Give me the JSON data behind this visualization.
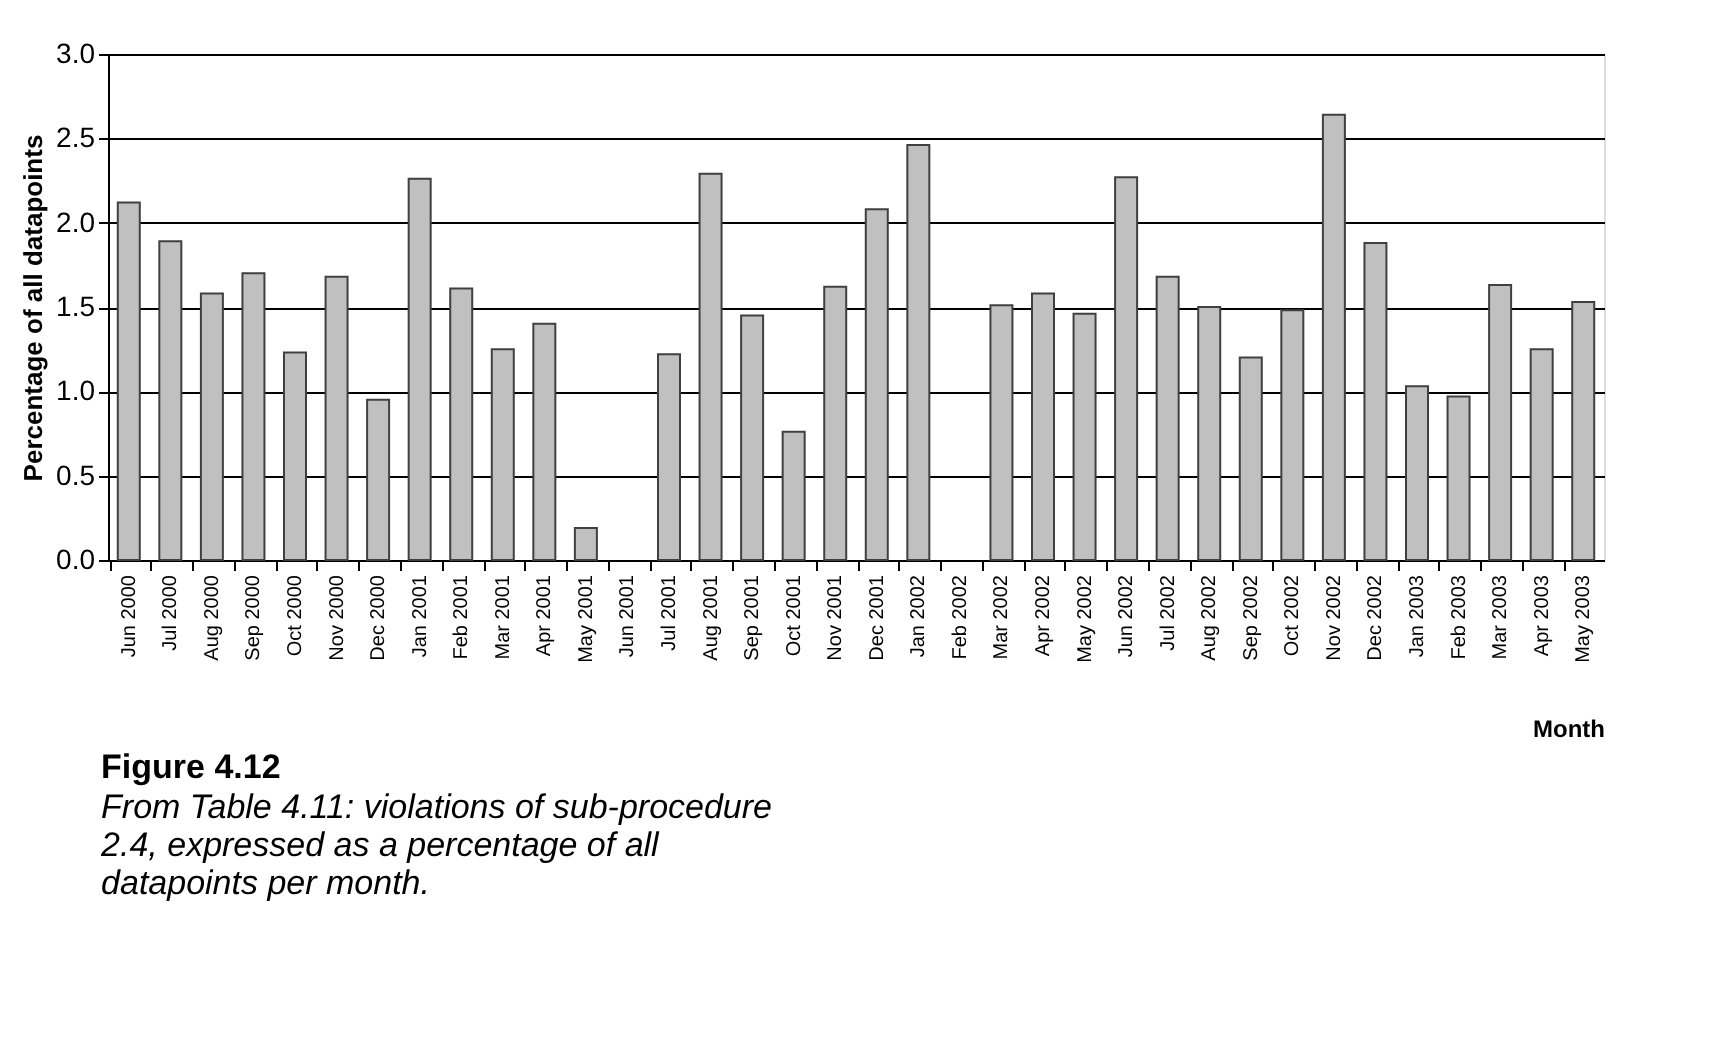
{
  "chart_data": {
    "type": "bar",
    "title": "Figure 4.12",
    "subtitle": "From Table 4.11: violations of sub-procedure 2.4, expressed as a percentage of all datapoints per month.",
    "xlabel": "Month",
    "ylabel": "Percentage of all datapoints",
    "categories": [
      "Jun 2000",
      "Jul 2000",
      "Aug 2000",
      "Sep 2000",
      "Oct 2000",
      "Nov 2000",
      "Dec 2000",
      "Jan 2001",
      "Feb 2001",
      "Mar 2001",
      "Apr 2001",
      "May 2001",
      "Jun 2001",
      "Jul 2001",
      "Aug 2001",
      "Sep 2001",
      "Oct 2001",
      "Nov 2001",
      "Dec 2001",
      "Jan 2002",
      "Feb 2002",
      "Mar 2002",
      "Apr 2002",
      "May 2002",
      "Jun 2002",
      "Jul 2002",
      "Aug 2002",
      "Sep 2002",
      "Oct 2002",
      "Nov 2002",
      "Dec 2002",
      "Jan 2003",
      "Feb 2003",
      "Mar 2003",
      "Apr 2003",
      "May 2003"
    ],
    "values": [
      2.12,
      1.89,
      1.58,
      1.7,
      1.23,
      1.68,
      0.95,
      2.26,
      1.61,
      1.25,
      1.4,
      0.19,
      null,
      1.22,
      2.29,
      1.45,
      0.76,
      1.62,
      2.08,
      2.46,
      null,
      1.51,
      1.58,
      1.46,
      2.27,
      1.68,
      1.5,
      1.2,
      1.48,
      2.64,
      1.88,
      1.03,
      0.97,
      1.63,
      1.25,
      1.53
    ],
    "color": "#c0c0c0",
    "ylim": [
      0,
      3.0
    ],
    "yticks": [
      {
        "value": 0,
        "label": "0.0"
      },
      {
        "value": 0.5,
        "label": "0.5"
      },
      {
        "value": 1.0,
        "label": "1.0"
      },
      {
        "value": 1.5,
        "label": "1.5"
      },
      {
        "value": 2.0,
        "label": "2.0"
      },
      {
        "value": 2.5,
        "label": "2.5"
      },
      {
        "value": 3.0,
        "label": "3.0"
      }
    ],
    "grid": "y"
  }
}
